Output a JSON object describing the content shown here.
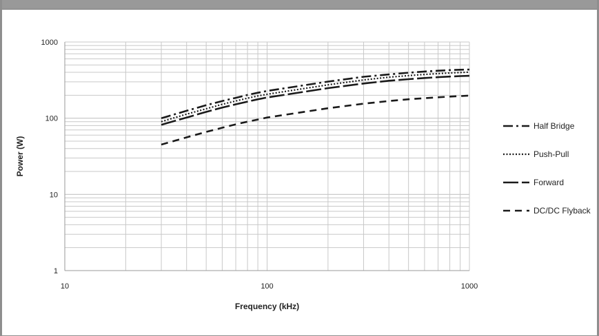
{
  "colors": {
    "line": "#1a1a1a",
    "grid": "#c8c8c8",
    "axis": "#9a9a9a",
    "frame": "#999999"
  },
  "chart_data": {
    "type": "line",
    "xlabel": "Frequency (kHz)",
    "ylabel": "Power (W)",
    "xscale": "log",
    "yscale": "log",
    "xlim": [
      10,
      1000
    ],
    "ylim": [
      1,
      1000
    ],
    "grid": true,
    "legend_position": "right",
    "x_tick_labels": [
      "10",
      "100",
      "1000"
    ],
    "y_tick_labels": [
      "1",
      "10",
      "100",
      "1000"
    ],
    "series": [
      {
        "name": "Half Bridge",
        "style": "dash-dot",
        "x": [
          30,
          40,
          50,
          60,
          70,
          80,
          90,
          100,
          200,
          300,
          400,
          500,
          600,
          700,
          800,
          900,
          1000
        ],
        "y": [
          100,
          125,
          148,
          168,
          185,
          202,
          216,
          228,
          302,
          350,
          375,
          395,
          410,
          420,
          428,
          432,
          435
        ]
      },
      {
        "name": "Push-Pull",
        "style": "dotted",
        "x": [
          30,
          40,
          50,
          60,
          70,
          80,
          90,
          100,
          200,
          300,
          400,
          500,
          600,
          700,
          800,
          900,
          1000
        ],
        "y": [
          90,
          113,
          133,
          152,
          168,
          183,
          196,
          206,
          274,
          318,
          345,
          362,
          375,
          385,
          392,
          398,
          402
        ]
      },
      {
        "name": "Forward",
        "style": "long-dash",
        "x": [
          30,
          40,
          50,
          60,
          70,
          80,
          90,
          100,
          200,
          300,
          400,
          500,
          600,
          700,
          800,
          900,
          1000
        ],
        "y": [
          82,
          102,
          121,
          138,
          152,
          165,
          177,
          187,
          248,
          285,
          310,
          325,
          337,
          345,
          352,
          357,
          360
        ]
      },
      {
        "name": "DC/DC Flyback",
        "style": "dash",
        "x": [
          30,
          40,
          50,
          60,
          70,
          80,
          90,
          100,
          200,
          300,
          400,
          500,
          600,
          700,
          800,
          900,
          1000
        ],
        "y": [
          45,
          56,
          66,
          75,
          83,
          90,
          96,
          102,
          135,
          155,
          168,
          177,
          183,
          188,
          192,
          195,
          198
        ]
      }
    ]
  }
}
